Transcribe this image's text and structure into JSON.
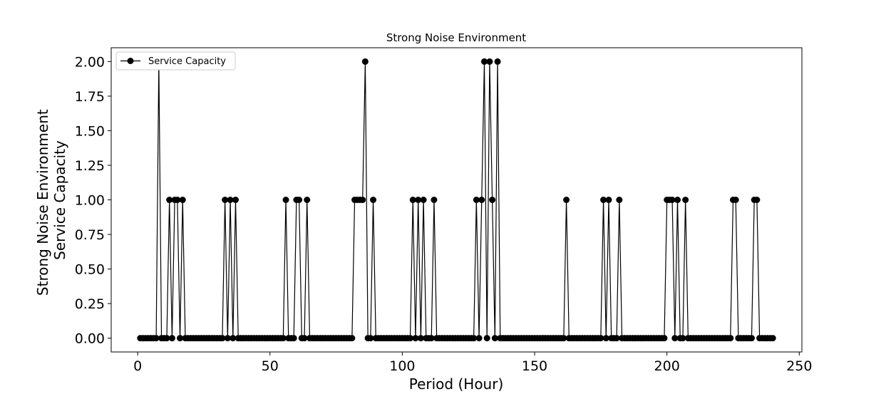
{
  "chart_data": {
    "type": "line",
    "title": "Strong Noise Environment",
    "xlabel": "Period (Hour)",
    "ylabel_lines": [
      "Strong Noise Environment",
      "Service Capacity"
    ],
    "xlim": [
      -10,
      251
    ],
    "ylim": [
      -0.1,
      2.1
    ],
    "xticks": [
      0,
      50,
      100,
      150,
      200,
      250
    ],
    "yticks": [
      0.0,
      0.25,
      0.5,
      0.75,
      1.0,
      1.25,
      1.5,
      1.75,
      2.0
    ],
    "xtick_labels": [
      "0",
      "50",
      "100",
      "150",
      "200",
      "250"
    ],
    "ytick_labels": [
      "0.00",
      "0.25",
      "0.50",
      "0.75",
      "1.00",
      "1.25",
      "1.50",
      "1.75",
      "2.00"
    ],
    "grid": false,
    "legend_position": "top-left",
    "series": [
      {
        "name": "Service Capacity",
        "color": "#000000",
        "marker": "circle",
        "x_start": 1,
        "values": [
          0,
          0,
          0,
          0,
          0,
          0,
          0,
          2,
          0,
          0,
          0,
          1,
          0,
          1,
          1,
          0,
          1,
          0,
          0,
          0,
          0,
          0,
          0,
          0,
          0,
          0,
          0,
          0,
          0,
          0,
          0,
          0,
          1,
          0,
          1,
          0,
          1,
          0,
          0,
          0,
          0,
          0,
          0,
          0,
          0,
          0,
          0,
          0,
          0,
          0,
          0,
          0,
          0,
          0,
          0,
          1,
          0,
          0,
          0,
          1,
          1,
          0,
          0,
          1,
          0,
          0,
          0,
          0,
          0,
          0,
          0,
          0,
          0,
          0,
          0,
          0,
          0,
          0,
          0,
          0,
          0,
          1,
          1,
          1,
          1,
          2,
          0,
          0,
          1,
          0,
          0,
          0,
          0,
          0,
          0,
          0,
          0,
          0,
          0,
          0,
          0,
          0,
          0,
          1,
          0,
          1,
          0,
          1,
          0,
          0,
          0,
          1,
          0,
          0,
          0,
          0,
          0,
          0,
          0,
          0,
          0,
          0,
          0,
          0,
          0,
          0,
          0,
          1,
          0,
          1,
          2,
          0,
          2,
          1,
          0,
          2,
          0,
          0,
          0,
          0,
          0,
          0,
          0,
          0,
          0,
          0,
          0,
          0,
          0,
          0,
          0,
          0,
          0,
          0,
          0,
          0,
          0,
          0,
          0,
          0,
          0,
          1,
          0,
          0,
          0,
          0,
          0,
          0,
          0,
          0,
          0,
          0,
          0,
          0,
          0,
          1,
          0,
          1,
          0,
          0,
          0,
          1,
          0,
          0,
          0,
          0,
          0,
          0,
          0,
          0,
          0,
          0,
          0,
          0,
          0,
          0,
          0,
          0,
          0,
          1,
          1,
          1,
          0,
          1,
          0,
          0,
          1,
          0,
          0,
          0,
          0,
          0,
          0,
          0,
          0,
          0,
          0,
          0,
          0,
          0,
          0,
          0,
          0,
          0,
          1,
          1,
          0,
          0,
          0,
          0,
          0,
          0,
          1,
          1,
          0,
          0,
          0,
          0,
          0,
          0
        ]
      }
    ]
  }
}
